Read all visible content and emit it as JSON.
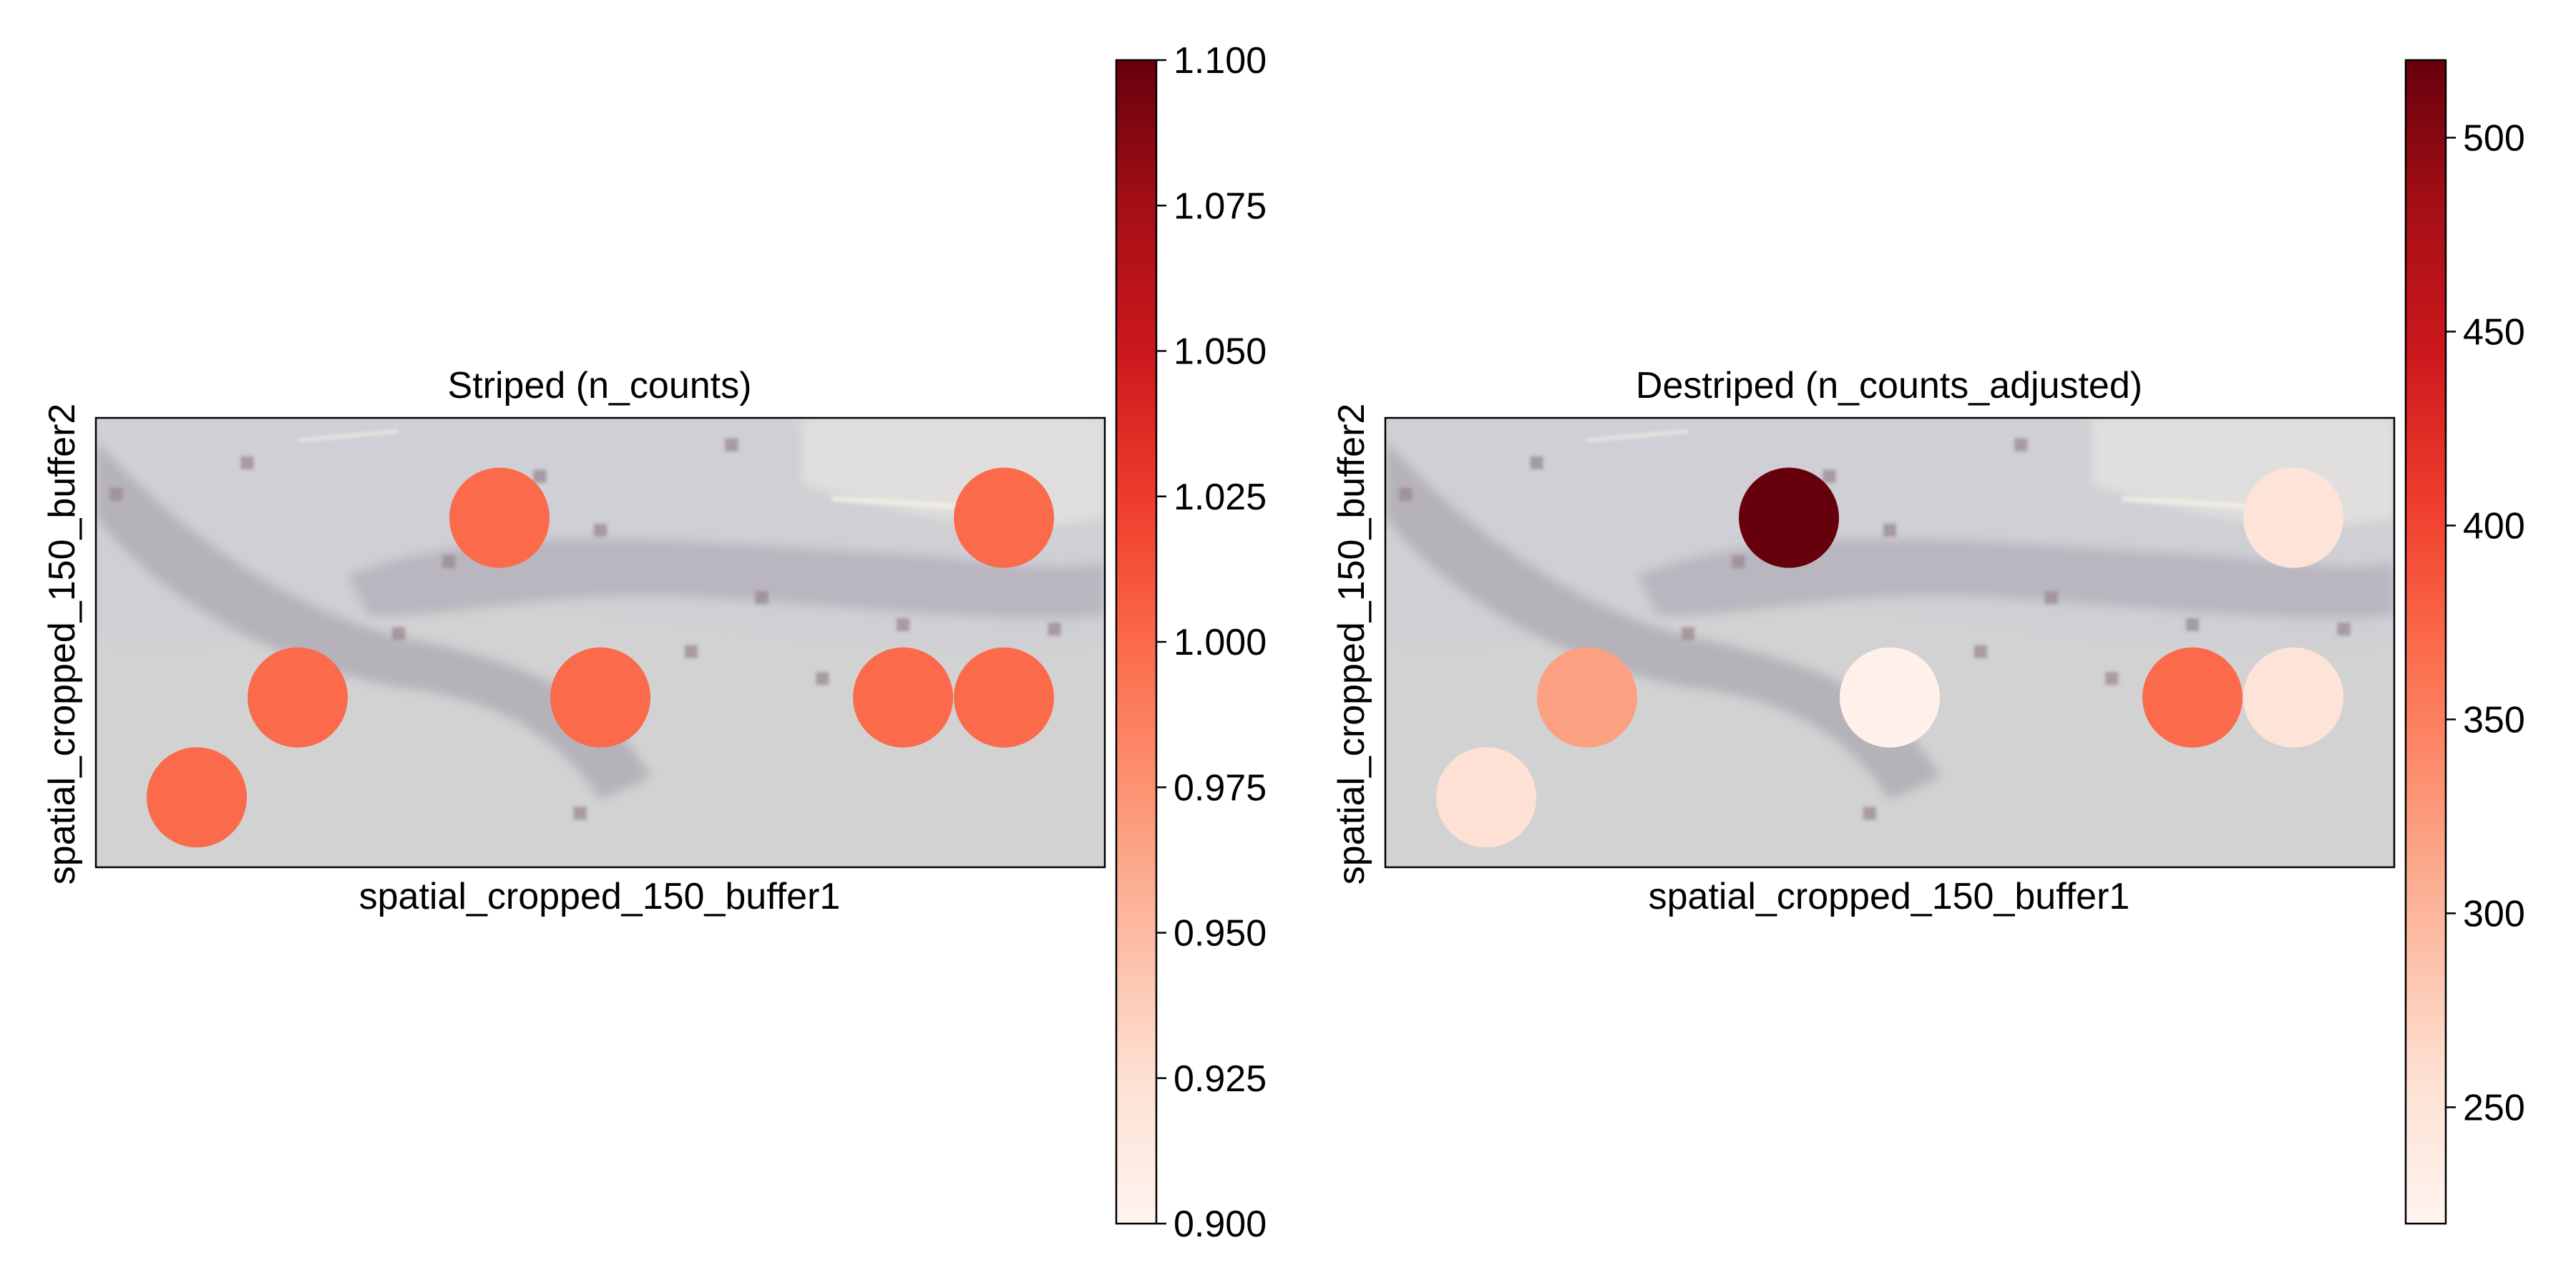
{
  "chart_data": [
    {
      "type": "scatter",
      "title": "Striped (n_counts)",
      "xlabel": "spatial_cropped_150_buffer1",
      "ylabel": "spatial_cropped_150_buffer2",
      "background": "tissue image (grayscale, blurred)",
      "xlim": [
        0,
        10
      ],
      "ylim": [
        0,
        4.5
      ],
      "points": [
        {
          "x": 4,
          "y": 3.5,
          "value": 1.0
        },
        {
          "x": 9,
          "y": 3.5,
          "value": 1.0
        },
        {
          "x": 2,
          "y": 1.7,
          "value": 1.0
        },
        {
          "x": 5,
          "y": 1.7,
          "value": 1.0
        },
        {
          "x": 8,
          "y": 1.7,
          "value": 1.0
        },
        {
          "x": 9,
          "y": 1.7,
          "value": 1.0
        },
        {
          "x": 1,
          "y": 0.7,
          "value": 1.0
        }
      ],
      "colorbar": {
        "colormap": "Reds",
        "vmin": 0.9,
        "vmax": 1.1,
        "ticks": [
          0.9,
          0.925,
          0.95,
          0.975,
          1.0,
          1.025,
          1.05,
          1.075,
          1.1
        ],
        "tick_labels": [
          "0.900",
          "0.925",
          "0.950",
          "0.975",
          "1.000",
          "1.025",
          "1.050",
          "1.075",
          "1.100"
        ]
      }
    },
    {
      "type": "scatter",
      "title": "Destriped (n_counts_adjusted)",
      "xlabel": "spatial_cropped_150_buffer1",
      "ylabel": "spatial_cropped_150_buffer2",
      "background": "tissue image (grayscale, blurred)",
      "xlim": [
        0,
        10
      ],
      "ylim": [
        0,
        4.5
      ],
      "points": [
        {
          "x": 4,
          "y": 3.5,
          "value": 520
        },
        {
          "x": 9,
          "y": 3.5,
          "value": 250
        },
        {
          "x": 2,
          "y": 1.7,
          "value": 320
        },
        {
          "x": 5,
          "y": 1.7,
          "value": 228
        },
        {
          "x": 8,
          "y": 1.7,
          "value": 370
        },
        {
          "x": 9,
          "y": 1.7,
          "value": 250
        },
        {
          "x": 1,
          "y": 0.7,
          "value": 255
        }
      ],
      "colorbar": {
        "colormap": "Reds",
        "vmin": 220,
        "vmax": 520,
        "ticks": [
          250,
          300,
          350,
          400,
          450,
          500
        ],
        "tick_labels": [
          "250",
          "300",
          "350",
          "400",
          "450",
          "500"
        ]
      }
    }
  ],
  "colors": {
    "reds_colormap": [
      "#fff5f0",
      "#fee0d2",
      "#fcbba1",
      "#fc9272",
      "#fb6a4a",
      "#ef3b2c",
      "#cb181d",
      "#a50f15",
      "#67000d"
    ],
    "tissue_bg": "#d3d3d3",
    "tissue_structure": "#a9a5ad"
  }
}
